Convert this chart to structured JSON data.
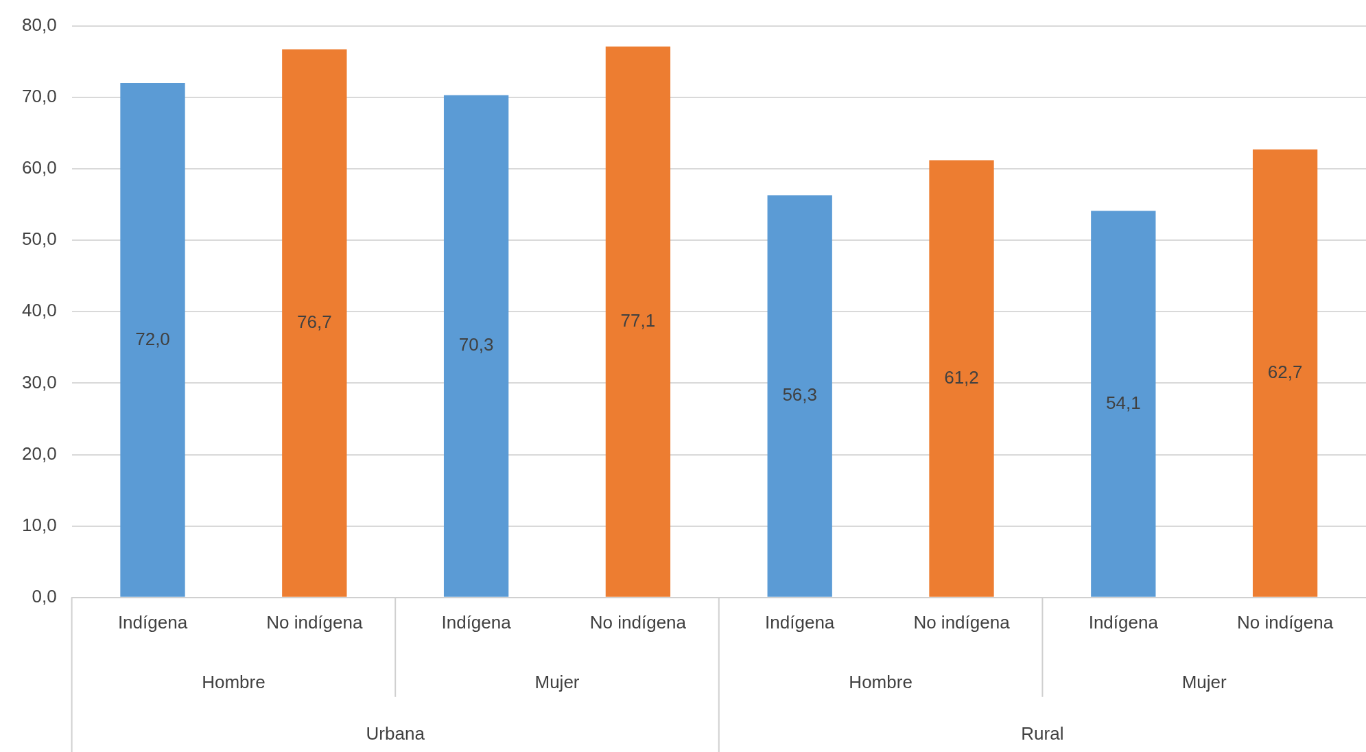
{
  "chart_data": {
    "type": "bar",
    "categories": [
      "Indígena",
      "No indígena",
      "Indígena",
      "No indígena",
      "Indígena",
      "No indígena",
      "Indígena",
      "No indígena"
    ],
    "values": [
      72.0,
      76.7,
      70.3,
      77.1,
      56.3,
      61.2,
      54.1,
      62.7
    ],
    "colors": [
      "#5b9bd5",
      "#ed7d31",
      "#5b9bd5",
      "#ed7d31",
      "#5b9bd5",
      "#ed7d31",
      "#5b9bd5",
      "#ed7d31"
    ],
    "value_labels": [
      "72,0",
      "76,7",
      "70,3",
      "77,1",
      "56,3",
      "61,2",
      "54,1",
      "62,7"
    ],
    "ylim": [
      0,
      80
    ],
    "yticks": [
      {
        "value": 0,
        "label": "0,0"
      },
      {
        "value": 10,
        "label": "10,0"
      },
      {
        "value": 20,
        "label": "20,0"
      },
      {
        "value": 30,
        "label": "30,0"
      },
      {
        "value": 40,
        "label": "40,0"
      },
      {
        "value": 50,
        "label": "50,0"
      },
      {
        "value": 60,
        "label": "60,0"
      },
      {
        "value": 70,
        "label": "70,0"
      },
      {
        "value": 80,
        "label": "80,0"
      }
    ],
    "grid": "y",
    "legend": false,
    "annotations": [
      "Hombre",
      "Mujer",
      "Hombre",
      "Mujer",
      "Urbana",
      "Rural"
    ]
  }
}
